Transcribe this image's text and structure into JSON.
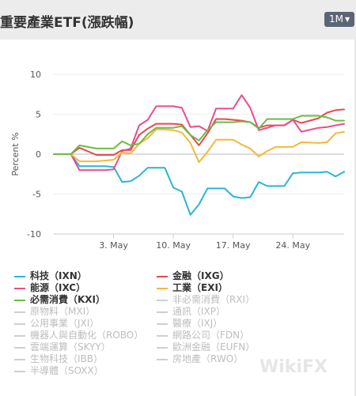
{
  "header": {
    "title": "重要產業ETF(漲跌幅)",
    "range_label": "1M"
  },
  "watermark": "WikiFX",
  "chart_data": {
    "type": "line",
    "ylabel": "Percent %",
    "ylim": [
      -10,
      10
    ],
    "yticks": [
      10,
      5,
      0,
      -5,
      -10
    ],
    "x_dates": [
      "2024-04-26",
      "2024-04-29",
      "2024-04-30",
      "2024-05-01",
      "2024-05-02",
      "2024-05-03",
      "2024-05-06",
      "2024-05-07",
      "2024-05-08",
      "2024-05-09",
      "2024-05-10",
      "2024-05-13",
      "2024-05-14",
      "2024-05-15",
      "2024-05-16",
      "2024-05-17",
      "2024-05-20",
      "2024-05-21",
      "2024-05-22",
      "2024-05-23",
      "2024-05-24",
      "2024-05-27",
      "2024-05-28",
      "2024-05-29",
      "2024-05-30"
    ],
    "xlim": [
      "2024-04-26",
      "2024-05-30"
    ],
    "xticks": [
      {
        "label": "3. May",
        "date": "2024-05-03"
      },
      {
        "label": "10. May",
        "date": "2024-05-10"
      },
      {
        "label": "17. May",
        "date": "2024-05-17"
      },
      {
        "label": "24. May",
        "date": "2024-05-24"
      }
    ],
    "series": [
      {
        "name": "科技（IXN）",
        "color": "#29b6d6",
        "visible": true,
        "x": [
          "2024-04-26",
          "2024-04-28",
          "2024-04-29",
          "2024-05-01",
          "2024-05-02",
          "2024-05-03",
          "2024-05-04",
          "2024-05-05",
          "2024-05-06",
          "2024-05-07",
          "2024-05-08",
          "2024-05-09",
          "2024-05-10",
          "2024-05-11",
          "2024-05-12",
          "2024-05-13",
          "2024-05-14",
          "2024-05-15",
          "2024-05-16",
          "2024-05-17",
          "2024-05-18",
          "2024-05-19",
          "2024-05-20",
          "2024-05-21",
          "2024-05-22",
          "2024-05-23",
          "2024-05-24",
          "2024-05-25",
          "2024-05-27",
          "2024-05-28",
          "2024-05-29",
          "2024-05-30"
        ],
        "values": [
          0,
          0,
          -1.5,
          -1.5,
          -1.5,
          -1.6,
          -3.5,
          -3.4,
          -2.7,
          -1.7,
          -1.7,
          -1.7,
          -4.2,
          -4.7,
          -7.6,
          -6.3,
          -4.3,
          -4.3,
          -4.3,
          -5.3,
          -5.5,
          -5.4,
          -3.5,
          -4.0,
          -4.0,
          -4.0,
          -2.4,
          -2.3,
          -2.3,
          -2.2,
          -2.8,
          -2.2
        ]
      },
      {
        "name": "金融（IXG）",
        "color": "#e84a4a",
        "visible": true,
        "x": [
          "2024-04-26",
          "2024-04-28",
          "2024-04-29",
          "2024-05-01",
          "2024-05-02",
          "2024-05-03",
          "2024-05-04",
          "2024-05-05",
          "2024-05-06",
          "2024-05-07",
          "2024-05-08",
          "2024-05-09",
          "2024-05-10",
          "2024-05-11",
          "2024-05-12",
          "2024-05-13",
          "2024-05-14",
          "2024-05-15",
          "2024-05-16",
          "2024-05-17",
          "2024-05-18",
          "2024-05-19",
          "2024-05-20",
          "2024-05-21",
          "2024-05-22",
          "2024-05-23",
          "2024-05-24",
          "2024-05-25",
          "2024-05-27",
          "2024-05-28",
          "2024-05-29",
          "2024-05-30"
        ],
        "values": [
          0,
          0,
          0.8,
          -0.1,
          -0.1,
          -0.1,
          0.5,
          0.5,
          2.4,
          3.2,
          3.8,
          3.8,
          3.8,
          3.7,
          2.4,
          1.1,
          2.6,
          4.4,
          4.4,
          4.3,
          4.2,
          4.0,
          3.3,
          3.6,
          3.6,
          3.6,
          4.3,
          3.9,
          4.5,
          5.2,
          5.5,
          5.6
        ]
      },
      {
        "name": "能源（IXC）",
        "color": "#e94c8b",
        "visible": true,
        "x": [
          "2024-04-26",
          "2024-04-28",
          "2024-04-29",
          "2024-05-01",
          "2024-05-02",
          "2024-05-03",
          "2024-05-04",
          "2024-05-05",
          "2024-05-06",
          "2024-05-07",
          "2024-05-08",
          "2024-05-09",
          "2024-05-10",
          "2024-05-11",
          "2024-05-12",
          "2024-05-13",
          "2024-05-14",
          "2024-05-15",
          "2024-05-16",
          "2024-05-17",
          "2024-05-18",
          "2024-05-19",
          "2024-05-20",
          "2024-05-21",
          "2024-05-22",
          "2024-05-23",
          "2024-05-24",
          "2024-05-25",
          "2024-05-27",
          "2024-05-28",
          "2024-05-29",
          "2024-05-30"
        ],
        "values": [
          0,
          0,
          -2.0,
          -2.0,
          -2.0,
          -1.9,
          0.4,
          0.7,
          3.6,
          4.3,
          6.0,
          6.0,
          6.0,
          5.8,
          3.4,
          3.5,
          2.9,
          5.7,
          5.7,
          5.7,
          7.4,
          5.8,
          3.0,
          3.3,
          3.6,
          3.6,
          4.3,
          2.8,
          3.3,
          3.4,
          3.6,
          3.8
        ]
      },
      {
        "name": "工業（EXI）",
        "color": "#f5b73b",
        "visible": true,
        "x": [
          "2024-04-26",
          "2024-04-28",
          "2024-04-29",
          "2024-05-01",
          "2024-05-02",
          "2024-05-03",
          "2024-05-04",
          "2024-05-05",
          "2024-05-06",
          "2024-05-07",
          "2024-05-08",
          "2024-05-09",
          "2024-05-10",
          "2024-05-11",
          "2024-05-12",
          "2024-05-13",
          "2024-05-14",
          "2024-05-15",
          "2024-05-16",
          "2024-05-17",
          "2024-05-18",
          "2024-05-19",
          "2024-05-20",
          "2024-05-21",
          "2024-05-22",
          "2024-05-23",
          "2024-05-24",
          "2024-05-25",
          "2024-05-27",
          "2024-05-28",
          "2024-05-29",
          "2024-05-30"
        ],
        "values": [
          0,
          0,
          -0.9,
          -0.9,
          -0.8,
          -0.7,
          0.2,
          0.1,
          1.3,
          2.0,
          3.1,
          3.1,
          3.0,
          2.7,
          1.4,
          -1.0,
          0.3,
          1.8,
          1.8,
          1.8,
          1.2,
          0.7,
          -0.3,
          0.4,
          0.9,
          0.9,
          0.9,
          1.5,
          1.4,
          1.5,
          2.6,
          2.8
        ]
      },
      {
        "name": "必需消費（KXI）",
        "color": "#6dbb45",
        "visible": true,
        "x": [
          "2024-04-26",
          "2024-04-28",
          "2024-04-29",
          "2024-05-01",
          "2024-05-02",
          "2024-05-03",
          "2024-05-04",
          "2024-05-05",
          "2024-05-06",
          "2024-05-07",
          "2024-05-08",
          "2024-05-09",
          "2024-05-10",
          "2024-05-11",
          "2024-05-12",
          "2024-05-13",
          "2024-05-14",
          "2024-05-15",
          "2024-05-16",
          "2024-05-17",
          "2024-05-18",
          "2024-05-19",
          "2024-05-20",
          "2024-05-21",
          "2024-05-22",
          "2024-05-23",
          "2024-05-24",
          "2024-05-25",
          "2024-05-27",
          "2024-05-28",
          "2024-05-29",
          "2024-05-30"
        ],
        "values": [
          0,
          0,
          1.1,
          0.7,
          0.7,
          0.7,
          1.6,
          1.1,
          1.3,
          2.5,
          3.3,
          3.3,
          3.3,
          3.5,
          2.4,
          1.7,
          3.0,
          4.0,
          4.0,
          4.0,
          4.1,
          4.0,
          3.2,
          4.4,
          4.4,
          4.4,
          4.4,
          4.8,
          4.8,
          4.6,
          4.2,
          4.2
        ]
      },
      {
        "name": "非必需消費（RXI）",
        "visible": false
      },
      {
        "name": "原物料（MXI）",
        "visible": false
      },
      {
        "name": "通訊（IXP）",
        "visible": false
      },
      {
        "name": "公用事業（JXI）",
        "visible": false
      },
      {
        "name": "醫療（IXJ）",
        "visible": false
      },
      {
        "name": "機器人與自動化（ROBO）",
        "visible": false
      },
      {
        "name": "網路公司（FDN）",
        "visible": false
      },
      {
        "name": "雲端運算（SKYY）",
        "visible": false
      },
      {
        "name": "歐洲金融（EUFN）",
        "visible": false
      },
      {
        "name": "生物科技（IBB）",
        "visible": false
      },
      {
        "name": "房地產（RWO）",
        "visible": false
      },
      {
        "name": "半導體（SOXX）",
        "visible": false
      }
    ]
  }
}
